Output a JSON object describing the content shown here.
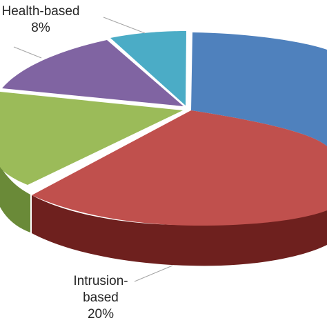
{
  "chart_data": {
    "type": "pie",
    "style": "3d-exploded-cropped",
    "slices": [
      {
        "label_lines": [],
        "value": null,
        "color": "#4F81BD"
      },
      {
        "label_lines": [
          "Intrusion-",
          "based",
          "20%"
        ],
        "value": 20,
        "color": "#C0504D"
      },
      {
        "label_lines": [],
        "value": null,
        "color": "#9BBB59"
      },
      {
        "label_lines": [
          "-"
        ],
        "value": null,
        "color": "#8064A2"
      },
      {
        "label_lines": [
          "Health-based",
          "8%"
        ],
        "value": 8,
        "color": "#4BACC6"
      }
    ]
  }
}
